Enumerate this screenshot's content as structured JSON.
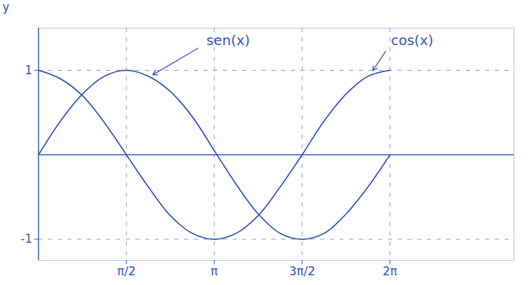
{
  "chart_data": {
    "type": "line",
    "y_label": "y",
    "x": [
      0,
      0.393,
      0.785,
      1.178,
      1.571,
      1.963,
      2.356,
      2.749,
      3.142,
      3.534,
      3.927,
      4.32,
      4.712,
      5.105,
      5.498,
      5.89,
      6.283
    ],
    "series": [
      {
        "name": "sen(x)",
        "color": "#3355b8",
        "values": [
          0,
          0.4,
          0.72,
          0.93,
          1.0,
          0.93,
          0.75,
          0.45,
          0.05,
          -0.35,
          -0.7,
          -0.93,
          -1.0,
          -0.93,
          -0.7,
          -0.38,
          0.0
        ]
      },
      {
        "name": "cos(x)",
        "color": "#3355b8",
        "values": [
          1.0,
          0.9,
          0.7,
          0.38,
          0.0,
          -0.38,
          -0.72,
          -0.93,
          -1.0,
          -0.93,
          -0.72,
          -0.38,
          0.0,
          0.4,
          0.72,
          0.93,
          1.0
        ]
      }
    ],
    "annotations": [
      {
        "text": "sen(x)",
        "x": 3.0,
        "y": 1.32,
        "target": [
          2.0,
          0.93
        ]
      },
      {
        "text": "cos(x)",
        "x": 6.3,
        "y": 1.32,
        "target": [
          5.95,
          0.97
        ]
      }
    ],
    "xlim": [
      0,
      8.5
    ],
    "ylim": [
      -1.25,
      1.5
    ],
    "xticks": [
      {
        "value": 1.571,
        "label": "π/2"
      },
      {
        "value": 3.142,
        "label": "π"
      },
      {
        "value": 4.712,
        "label": "3π/2"
      },
      {
        "value": 6.283,
        "label": "2π"
      }
    ],
    "yticks": [
      -1,
      1
    ],
    "grid": true
  }
}
